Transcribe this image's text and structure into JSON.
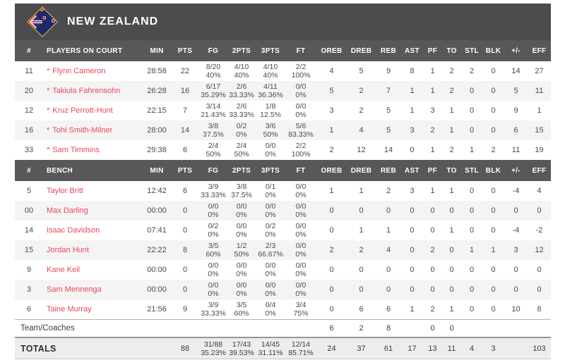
{
  "team": {
    "name": "NEW ZEALAND",
    "accent_color": "#e8475c",
    "banner_bg": "#4c4c4e",
    "header_bg": "#58585a",
    "flag_blue": "#1b2a6b",
    "flag_gold": "#c8a43c",
    "flag_red": "#cf2234"
  },
  "table": {
    "header_on_court": [
      "#",
      "PLAYERS ON COURT",
      "MIN",
      "PTS",
      "FG",
      "2PTS",
      "3PTS",
      "FT",
      "OREB",
      "DREB",
      "REB",
      "AST",
      "PF",
      "TO",
      "STL",
      "BLK",
      "+/-",
      "EFF"
    ],
    "header_bench": [
      "#",
      "BENCH",
      "MIN",
      "PTS",
      "FG",
      "2PTS",
      "3PTS",
      "FT",
      "OREB",
      "DREB",
      "REB",
      "AST",
      "PF",
      "TO",
      "STL",
      "BLK",
      "+/-",
      "EFF"
    ],
    "on_court": [
      {
        "num": "11",
        "star": "*",
        "name": "Flynn Cameron",
        "min": "28:58",
        "pts": "22",
        "fg": [
          "8/20",
          "40%"
        ],
        "p2": [
          "4/10",
          "40%"
        ],
        "p3": [
          "4/10",
          "40%"
        ],
        "ft": [
          "2/2",
          "100%"
        ],
        "oreb": "4",
        "dreb": "5",
        "reb": "9",
        "ast": "8",
        "pf": "1",
        "to": "2",
        "stl": "2",
        "blk": "0",
        "pm": "14",
        "eff": "27"
      },
      {
        "num": "20",
        "star": "*",
        "name": "Takiula Fahrensohn",
        "min": "26:28",
        "pts": "16",
        "fg": [
          "6/17",
          "35.29%"
        ],
        "p2": [
          "2/6",
          "33.33%"
        ],
        "p3": [
          "4/11",
          "36.36%"
        ],
        "ft": [
          "0/0",
          "0%"
        ],
        "oreb": "5",
        "dreb": "2",
        "reb": "7",
        "ast": "1",
        "pf": "1",
        "to": "2",
        "stl": "0",
        "blk": "0",
        "pm": "5",
        "eff": "11"
      },
      {
        "num": "12",
        "star": "*",
        "name": "Kruz Perrott-Hunt",
        "min": "22:15",
        "pts": "7",
        "fg": [
          "3/14",
          "21.43%"
        ],
        "p2": [
          "2/6",
          "33.33%"
        ],
        "p3": [
          "1/8",
          "12.5%"
        ],
        "ft": [
          "0/0",
          "0%"
        ],
        "oreb": "3",
        "dreb": "2",
        "reb": "5",
        "ast": "1",
        "pf": "3",
        "to": "1",
        "stl": "0",
        "blk": "0",
        "pm": "9",
        "eff": "1"
      },
      {
        "num": "16",
        "star": "*",
        "name": "Tohi Smith-Milner",
        "min": "28:00",
        "pts": "14",
        "fg": [
          "3/8",
          "37.5%"
        ],
        "p2": [
          "0/2",
          "0%"
        ],
        "p3": [
          "3/6",
          "50%"
        ],
        "ft": [
          "5/6",
          "83.33%"
        ],
        "oreb": "1",
        "dreb": "4",
        "reb": "5",
        "ast": "3",
        "pf": "2",
        "to": "1",
        "stl": "0",
        "blk": "0",
        "pm": "6",
        "eff": "15"
      },
      {
        "num": "33",
        "star": "*",
        "name": "Sam Timmins",
        "min": "29:38",
        "pts": "6",
        "fg": [
          "2/4",
          "50%"
        ],
        "p2": [
          "2/4",
          "50%"
        ],
        "p3": [
          "0/0",
          "0%"
        ],
        "ft": [
          "2/2",
          "100%"
        ],
        "oreb": "2",
        "dreb": "12",
        "reb": "14",
        "ast": "0",
        "pf": "1",
        "to": "2",
        "stl": "1",
        "blk": "2",
        "pm": "11",
        "eff": "19"
      }
    ],
    "bench": [
      {
        "num": "5",
        "star": "",
        "name": "Taylor Britt",
        "min": "12:42",
        "pts": "6",
        "fg": [
          "3/9",
          "33.33%"
        ],
        "p2": [
          "3/8",
          "37.5%"
        ],
        "p3": [
          "0/1",
          "0%"
        ],
        "ft": [
          "0/0",
          "0%"
        ],
        "oreb": "1",
        "dreb": "1",
        "reb": "2",
        "ast": "3",
        "pf": "1",
        "to": "1",
        "stl": "0",
        "blk": "0",
        "pm": "-4",
        "eff": "4"
      },
      {
        "num": "00",
        "star": "",
        "name": "Max Darling",
        "min": "00:00",
        "pts": "0",
        "fg": [
          "0/0",
          "0%"
        ],
        "p2": [
          "0/0",
          "0%"
        ],
        "p3": [
          "0/0",
          "0%"
        ],
        "ft": [
          "0/0",
          "0%"
        ],
        "oreb": "0",
        "dreb": "0",
        "reb": "0",
        "ast": "0",
        "pf": "0",
        "to": "0",
        "stl": "0",
        "blk": "0",
        "pm": "0",
        "eff": "0"
      },
      {
        "num": "14",
        "star": "",
        "name": "Isaac Davidson",
        "min": "07:41",
        "pts": "0",
        "fg": [
          "0/2",
          "0%"
        ],
        "p2": [
          "0/0",
          "0%"
        ],
        "p3": [
          "0/2",
          "0%"
        ],
        "ft": [
          "0/0",
          "0%"
        ],
        "oreb": "0",
        "dreb": "1",
        "reb": "1",
        "ast": "0",
        "pf": "0",
        "to": "1",
        "stl": "0",
        "blk": "0",
        "pm": "-4",
        "eff": "-2"
      },
      {
        "num": "15",
        "star": "",
        "name": "Jordan Hunt",
        "min": "22:22",
        "pts": "8",
        "fg": [
          "3/5",
          "60%"
        ],
        "p2": [
          "1/2",
          "50%"
        ],
        "p3": [
          "2/3",
          "66.67%"
        ],
        "ft": [
          "0/0",
          "0%"
        ],
        "oreb": "2",
        "dreb": "2",
        "reb": "4",
        "ast": "0",
        "pf": "2",
        "to": "0",
        "stl": "1",
        "blk": "1",
        "pm": "3",
        "eff": "12"
      },
      {
        "num": "9",
        "star": "",
        "name": "Kane Keil",
        "min": "00:00",
        "pts": "0",
        "fg": [
          "0/0",
          "0%"
        ],
        "p2": [
          "0/0",
          "0%"
        ],
        "p3": [
          "0/0",
          "0%"
        ],
        "ft": [
          "0/0",
          "0%"
        ],
        "oreb": "0",
        "dreb": "0",
        "reb": "0",
        "ast": "0",
        "pf": "0",
        "to": "0",
        "stl": "0",
        "blk": "0",
        "pm": "0",
        "eff": "0"
      },
      {
        "num": "3",
        "star": "",
        "name": "Sam Mennenga",
        "min": "00:00",
        "pts": "0",
        "fg": [
          "0/0",
          "0%"
        ],
        "p2": [
          "0/0",
          "0%"
        ],
        "p3": [
          "0/0",
          "0%"
        ],
        "ft": [
          "0/0",
          "0%"
        ],
        "oreb": "0",
        "dreb": "0",
        "reb": "0",
        "ast": "0",
        "pf": "0",
        "to": "0",
        "stl": "0",
        "blk": "0",
        "pm": "0",
        "eff": "0"
      },
      {
        "num": "6",
        "star": "",
        "name": "Taine Murray",
        "min": "21:56",
        "pts": "9",
        "fg": [
          "3/9",
          "33.33%"
        ],
        "p2": [
          "3/5",
          "60%"
        ],
        "p3": [
          "0/4",
          "0%"
        ],
        "ft": [
          "3/4",
          "75%"
        ],
        "oreb": "0",
        "dreb": "6",
        "reb": "6",
        "ast": "1",
        "pf": "2",
        "to": "1",
        "stl": "0",
        "blk": "0",
        "pm": "10",
        "eff": "8"
      }
    ],
    "team_coaches": {
      "label": "Team/Coaches",
      "min": "",
      "pts": "",
      "fg": "",
      "p2": "",
      "p3": "",
      "ft": "",
      "oreb": "6",
      "dreb": "2",
      "reb": "8",
      "ast": "",
      "pf": "0",
      "to": "0",
      "stl": "",
      "blk": "",
      "pm": "",
      "eff": ""
    },
    "totals": {
      "label": "TOTALS",
      "min": "",
      "pts": "88",
      "fg": [
        "31/88",
        "35.23%"
      ],
      "p2": [
        "17/43",
        "39.53%"
      ],
      "p3": [
        "14/45",
        "31.11%"
      ],
      "ft": [
        "12/14",
        "85.71%"
      ],
      "oreb": "24",
      "dreb": "37",
      "reb": "61",
      "ast": "17",
      "pf": "13",
      "to": "11",
      "stl": "4",
      "blk": "3",
      "pm": "",
      "eff": "103"
    }
  }
}
